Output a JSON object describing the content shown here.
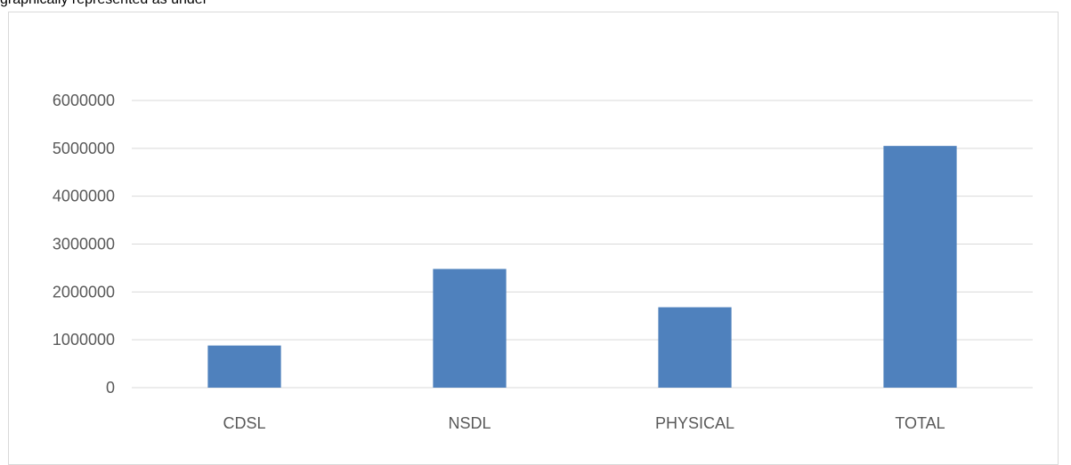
{
  "caption": "graphically represented as under",
  "chart_data": {
    "type": "bar",
    "title": "",
    "xlabel": "",
    "ylabel": "",
    "categories": [
      "CDSL",
      "NSDL",
      "PHYSICAL",
      "TOTAL"
    ],
    "values": [
      880000,
      2480000,
      1680000,
      5050000
    ],
    "ylim": [
      0,
      6000000
    ],
    "yticks": [
      "0",
      "1000000",
      "2000000",
      "3000000",
      "4000000",
      "5000000",
      "6000000"
    ],
    "grid": true,
    "legend": "none",
    "bar_color": "#4f81bd",
    "grid_color": "#d9d9d9"
  }
}
